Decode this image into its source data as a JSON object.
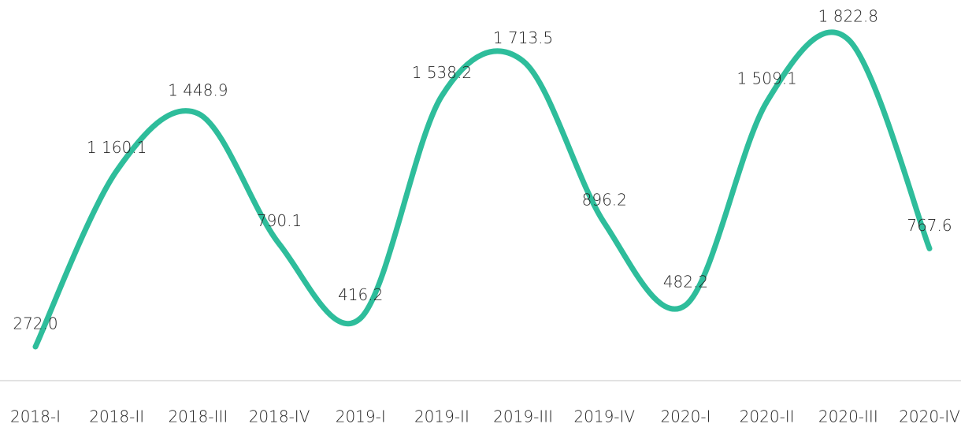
{
  "chart_data": {
    "type": "line",
    "categories": [
      "2018-I",
      "2018-II",
      "2018-III",
      "2018-IV",
      "2019-I",
      "2019-II",
      "2019-III",
      "2019-IV",
      "2020-I",
      "2020-II",
      "2020-III",
      "2020-IV"
    ],
    "series": [
      {
        "color": "#2ebd9b",
        "values": [
          272.0,
          1160.1,
          1448.9,
          790.1,
          416.2,
          1538.2,
          1713.5,
          896.2,
          482.2,
          1509.1,
          1822.8,
          767.6
        ],
        "value_labels": [
          "272.0",
          "1 160.1",
          "1 448.9",
          "790.1",
          "416.2",
          "1 538.2",
          "1 713.5",
          "896.2",
          "482.2",
          "1 509.1",
          "1 822.8",
          "767.6"
        ]
      }
    ]
  }
}
